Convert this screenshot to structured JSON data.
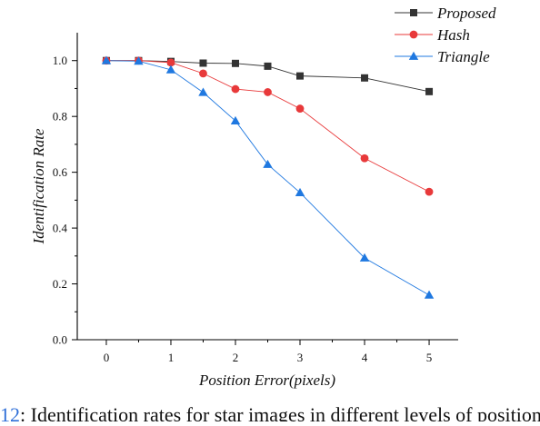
{
  "chart_data": {
    "type": "line",
    "title": "",
    "xlabel": "Position Error(pixels)",
    "ylabel": "Identification Rate",
    "xlim": [
      -0.45,
      5.45
    ],
    "ylim": [
      0.0,
      1.1
    ],
    "x_ticks": [
      0,
      1,
      2,
      3,
      4,
      5
    ],
    "y_ticks": [
      0.0,
      0.2,
      0.4,
      0.6,
      0.8,
      1.0
    ],
    "x_tick_labels": [
      "0",
      "1",
      "2",
      "3",
      "4",
      "5"
    ],
    "y_tick_labels": [
      "0.0",
      "0.2",
      "0.4",
      "0.6",
      "0.8",
      "1.0"
    ],
    "grid": false,
    "legend_position": "top-right",
    "series": [
      {
        "name": "Proposed",
        "marker": "square",
        "color": "#333333",
        "x": [
          0,
          0.5,
          1,
          1.5,
          2,
          2.5,
          3,
          4,
          5
        ],
        "values": [
          1.0,
          1.0,
          0.997,
          0.991,
          0.99,
          0.98,
          0.945,
          0.938,
          0.889
        ]
      },
      {
        "name": "Hash",
        "marker": "circle",
        "color": "#e8393a",
        "x": [
          0,
          0.5,
          1,
          1.5,
          2,
          2.5,
          3,
          4,
          5
        ],
        "values": [
          1.0,
          1.0,
          0.993,
          0.954,
          0.898,
          0.887,
          0.828,
          0.65,
          0.53
        ]
      },
      {
        "name": "Triangle",
        "marker": "triangle",
        "color": "#1f78e0",
        "x": [
          0,
          0.5,
          1,
          1.5,
          2,
          2.5,
          3,
          4,
          5
        ],
        "values": [
          1.0,
          0.998,
          0.967,
          0.886,
          0.784,
          0.628,
          0.527,
          0.293,
          0.16
        ]
      }
    ]
  },
  "caption": {
    "figure_number": "12",
    "text": ": Identification rates for star images in different levels of position error."
  }
}
